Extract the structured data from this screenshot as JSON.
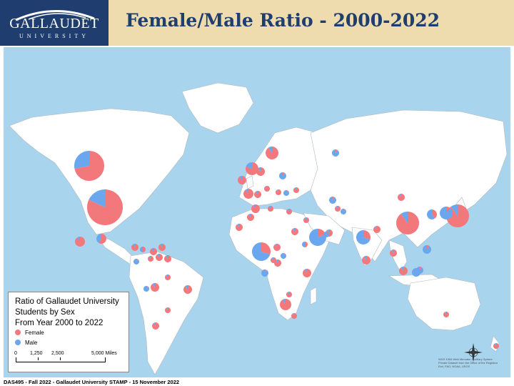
{
  "header": {
    "logo_name": "GALLAUDET",
    "logo_sub": "UNIVERSITY",
    "title": "Female/Male Ratio - 2000-2022"
  },
  "colors": {
    "female": "#f2787c",
    "male": "#6aa7ef",
    "ocean": "#a9d4ee",
    "land": "#ffffff",
    "header_bg": "#eedcae",
    "header_text": "#1f3d6e"
  },
  "legend": {
    "title_lines": [
      "Ratio of Gallaudet University",
      "Students by Sex",
      "From Year 2000 to 2022"
    ],
    "items": [
      {
        "label": "Female",
        "color": "#f2787c"
      },
      {
        "label": "Male",
        "color": "#6aa7ef"
      }
    ],
    "scale_labels": [
      "0",
      "1,250",
      "2,500",
      "5,000 Miles"
    ]
  },
  "compass": {
    "n": "N",
    "s": "S",
    "e": "E",
    "w": "W"
  },
  "credits": [
    "WGS 1984 Web Mercator Auxiliary Sphere",
    "Private Dataset from the Office of the Registrar",
    "Esri, FAO, NOAA, USGS"
  ],
  "footer": "DAS495 - Fall 2022 - Gallaudet University STAMP - 15 November 2022"
}
